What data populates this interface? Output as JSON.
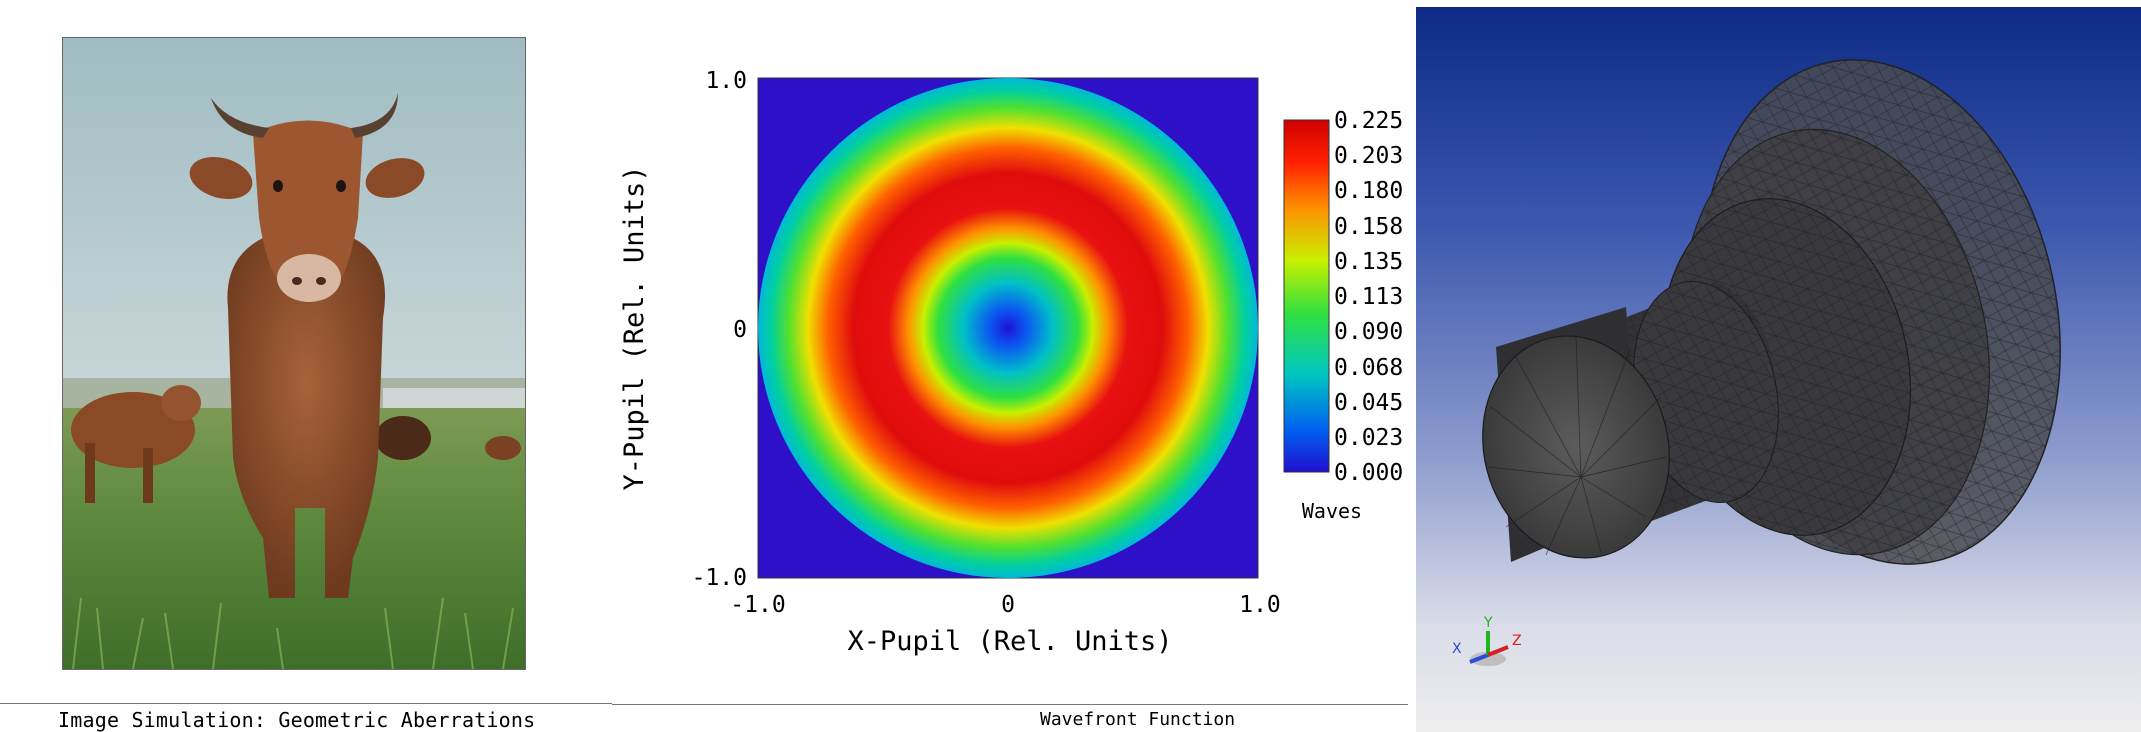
{
  "image_simulation": {
    "caption": "Image Simulation: Geometric Aberrations"
  },
  "wavefront": {
    "caption": "Wavefront Function",
    "x_axis": {
      "label": "X-Pupil (Rel. Units)",
      "ticks": [
        "-1.0",
        "0",
        "1.0"
      ]
    },
    "y_axis": {
      "label": "Y-Pupil (Rel. Units)",
      "ticks": [
        "1.0",
        "0",
        "-1.0"
      ]
    },
    "colorbar": {
      "unit": "Waves",
      "ticks": [
        "0.225",
        "0.203",
        "0.180",
        "0.158",
        "0.135",
        "0.113",
        "0.090",
        "0.068",
        "0.045",
        "0.023",
        "0.000"
      ]
    },
    "colors": {
      "background": "#2d10c8",
      "min": "#1a10d8",
      "max": "#e00c0c"
    }
  },
  "model_view": {
    "triad": {
      "x": "X",
      "y": "Y",
      "z": "Z",
      "x_color": "#2b4bd8",
      "y_color": "#1fb51f",
      "z_color": "#d82020"
    }
  }
}
